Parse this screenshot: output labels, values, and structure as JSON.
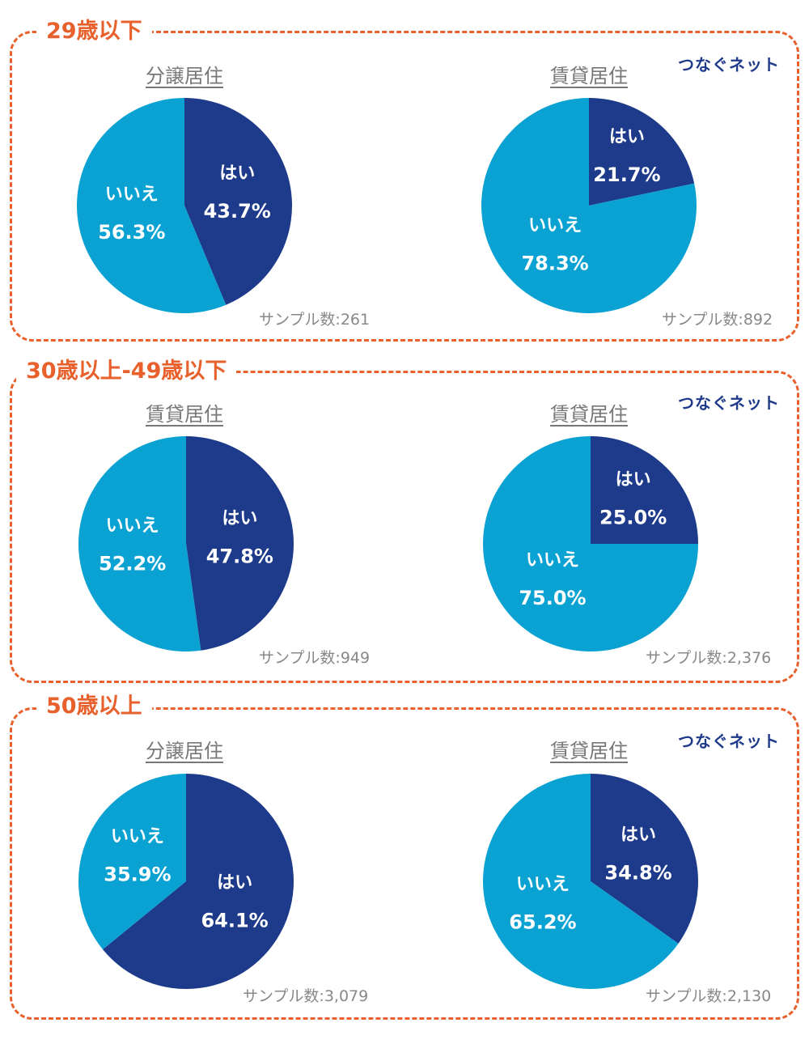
{
  "brand": "つなぐネット",
  "colors": {
    "yes": "#1E3A8A",
    "no": "#0AA2D2",
    "accent": "#E8612C"
  },
  "groups": [
    {
      "title": "29歳以下",
      "charts": [
        {
          "title": "分譲居住",
          "sample": "サンプル数:261"
        },
        {
          "title": "賃貸居住",
          "sample": "サンプル数:892"
        }
      ]
    },
    {
      "title": "30歳以上-49歳以下",
      "charts": [
        {
          "title": "賃貸居住",
          "sample": "サンプル数:949"
        },
        {
          "title": "賃貸居住",
          "sample": "サンプル数:2,376"
        }
      ]
    },
    {
      "title": "50歳以上",
      "charts": [
        {
          "title": "分譲居住",
          "sample": "サンプル数:3,079"
        },
        {
          "title": "賃貸居住",
          "sample": "サンプル数:2,130"
        }
      ]
    }
  ],
  "chart_data": [
    {
      "type": "pie",
      "categories": [
        "はい",
        "いいえ"
      ],
      "values": [
        43.7,
        56.3
      ],
      "labels": [
        "43.7%",
        "56.3%"
      ]
    },
    {
      "type": "pie",
      "categories": [
        "はい",
        "いいえ"
      ],
      "values": [
        21.7,
        78.3
      ],
      "labels": [
        "21.7%",
        "78.3%"
      ]
    },
    {
      "type": "pie",
      "categories": [
        "はい",
        "いいえ"
      ],
      "values": [
        47.8,
        52.2
      ],
      "labels": [
        "47.8%",
        "52.2%"
      ]
    },
    {
      "type": "pie",
      "categories": [
        "はい",
        "いいえ"
      ],
      "values": [
        25.0,
        75.0
      ],
      "labels": [
        "25.0%",
        "75.0%"
      ]
    },
    {
      "type": "pie",
      "categories": [
        "はい",
        "いいえ"
      ],
      "values": [
        64.1,
        35.9
      ],
      "labels": [
        "64.1%",
        "35.9%"
      ]
    },
    {
      "type": "pie",
      "categories": [
        "はい",
        "いいえ"
      ],
      "values": [
        34.8,
        65.2
      ],
      "labels": [
        "34.8%",
        "65.2%"
      ]
    }
  ]
}
